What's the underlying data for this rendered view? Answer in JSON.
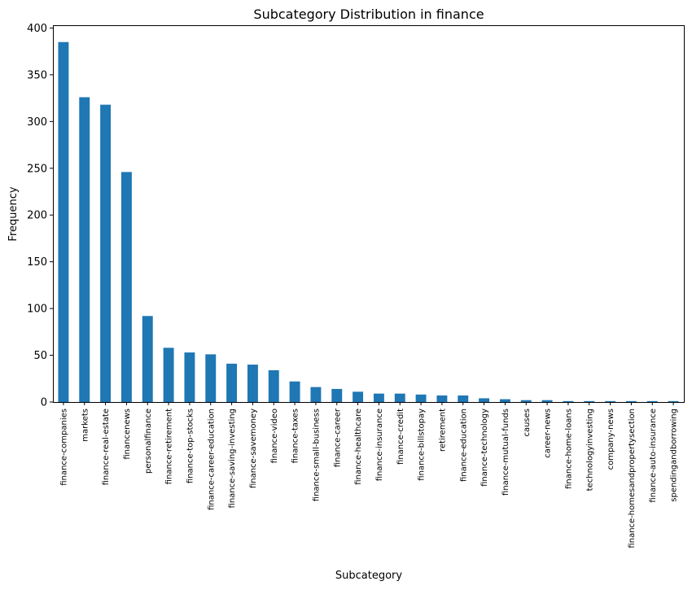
{
  "chart_data": {
    "type": "bar",
    "title": "Subcategory Distribution in finance",
    "xlabel": "Subcategory",
    "ylabel": "Frequency",
    "ylim": [
      0,
      403
    ],
    "yticks": [
      0,
      50,
      100,
      150,
      200,
      250,
      300,
      350,
      400
    ],
    "grid": false,
    "color": "#1f77b4",
    "categories": [
      "finance-companies",
      "markets",
      "finance-real-estate",
      "financenews",
      "personalfinance",
      "finance-retirement",
      "finance-top-stocks",
      "finance-career-education",
      "finance-saving-investing",
      "finance-savemoney",
      "finance-video",
      "finance-taxes",
      "finance-small-business",
      "finance-career",
      "finance-healthcare",
      "finance-insurance",
      "finance-credit",
      "finance-billstopay",
      "retirement",
      "finance-education",
      "finance-technology",
      "finance-mutual-funds",
      "causes",
      "career-news",
      "finance-home-loans",
      "technologyinvesting",
      "company-news",
      "finance-homesandpropertysection",
      "finance-auto-insurance",
      "spendingandborrowing"
    ],
    "values": [
      385,
      326,
      318,
      246,
      92,
      58,
      53,
      51,
      41,
      40,
      34,
      22,
      16,
      14,
      11,
      9,
      9,
      8,
      7,
      7,
      4,
      3,
      2,
      2,
      1,
      1,
      1,
      1,
      1,
      1
    ]
  }
}
